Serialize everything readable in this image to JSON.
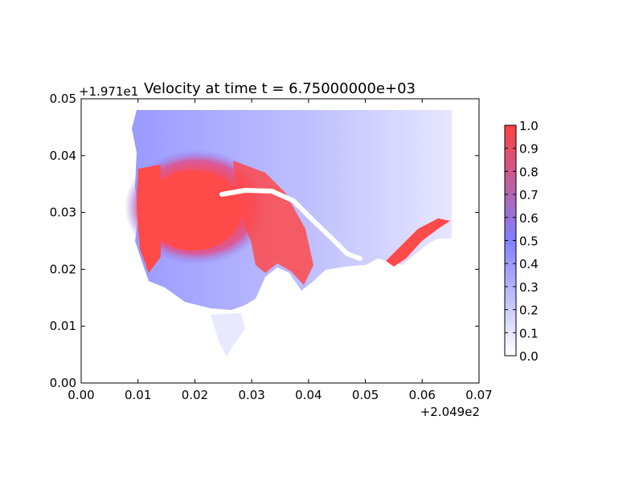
{
  "chart_data": {
    "type": "heatmap",
    "title": "Velocity at time t = 6.75000000e+03",
    "xlabel": "",
    "ylabel": "",
    "xlim": [
      0.0,
      0.07
    ],
    "ylim": [
      0.0,
      0.05
    ],
    "x_ticks": [
      "0.00",
      "0.01",
      "0.02",
      "0.03",
      "0.04",
      "0.05",
      "0.06",
      "0.07"
    ],
    "y_ticks": [
      "0.00",
      "0.01",
      "0.02",
      "0.03",
      "0.04",
      "0.05"
    ],
    "x_offset_label": "+2.049e2",
    "y_offset_label": "+1.971e1",
    "grid": false,
    "colorbar": {
      "min": 0.0,
      "max": 1.0,
      "ticks": [
        "0.0",
        "0.1",
        "0.2",
        "0.3",
        "0.4",
        "0.5",
        "0.6",
        "0.7",
        "0.8",
        "0.9",
        "1.0"
      ],
      "colors": [
        "#ffffff",
        "#7f7fff",
        "#ff4040"
      ]
    },
    "field": {
      "domain_x": [
        0.01,
        0.065
      ],
      "domain_y": [
        0.018,
        0.048
      ],
      "hotspot_center": [
        0.022,
        0.031
      ],
      "saturated_value": 1.0,
      "background_value": 0.15
    }
  }
}
